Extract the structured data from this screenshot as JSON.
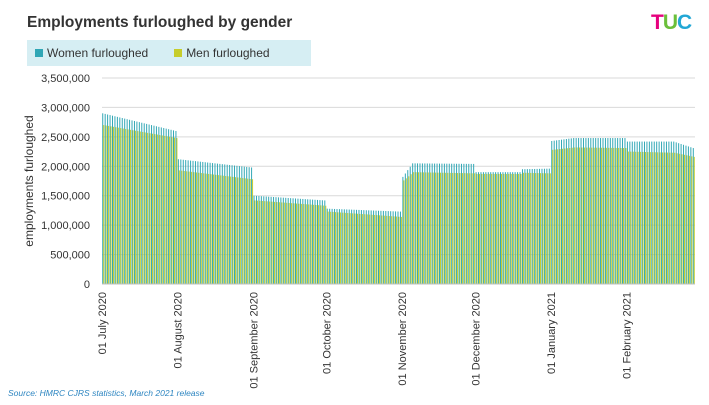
{
  "chart_data": {
    "type": "bar",
    "title": "Employments furloughed by gender",
    "xlabel": "",
    "ylabel": "employments furloughed",
    "ylim": [
      0,
      3500000
    ],
    "yticks": [
      0,
      500000,
      1000000,
      1500000,
      2000000,
      2500000,
      3000000,
      3500000
    ],
    "ytick_labels": [
      "0",
      "500,000",
      "1,000,000",
      "1,500,000",
      "2,000,000",
      "2,500,000",
      "3,000,000",
      "3,500,000"
    ],
    "grid": true,
    "legend_position": "top-left",
    "series": [
      {
        "name": "Women furloughed",
        "color": "#2fa6b5"
      },
      {
        "name": "Men furloughed",
        "color": "#c6cd2b"
      }
    ],
    "x_start": "2020-07-01",
    "x_end": "2021-02-28",
    "x_tick_labels": [
      {
        "date": "2020-07-01",
        "label": "01 July 2020"
      },
      {
        "date": "2020-08-01",
        "label": "01 August 2020"
      },
      {
        "date": "2020-09-01",
        "label": "01 September 2020"
      },
      {
        "date": "2020-10-01",
        "label": "01 October 2020"
      },
      {
        "date": "2020-11-01",
        "label": "01 November 2020"
      },
      {
        "date": "2020-12-01",
        "label": "01 December 2020"
      },
      {
        "date": "2021-01-01",
        "label": "01 January 2021"
      },
      {
        "date": "2021-02-01",
        "label": "01 February 2021"
      }
    ],
    "keypoints": [
      {
        "date": "2020-07-01",
        "women": 2900000,
        "men": 2700000
      },
      {
        "date": "2020-07-31",
        "women": 2600000,
        "men": 2480000
      },
      {
        "date": "2020-08-01",
        "women": 2120000,
        "men": 1930000
      },
      {
        "date": "2020-08-31",
        "women": 1980000,
        "men": 1780000
      },
      {
        "date": "2020-09-01",
        "women": 1500000,
        "men": 1420000
      },
      {
        "date": "2020-09-30",
        "women": 1420000,
        "men": 1330000
      },
      {
        "date": "2020-10-01",
        "women": 1280000,
        "men": 1230000
      },
      {
        "date": "2020-10-31",
        "women": 1230000,
        "men": 1140000
      },
      {
        "date": "2020-11-01",
        "women": 1820000,
        "men": 1760000
      },
      {
        "date": "2020-11-05",
        "women": 2050000,
        "men": 1900000
      },
      {
        "date": "2020-11-30",
        "women": 2040000,
        "men": 1880000
      },
      {
        "date": "2020-12-01",
        "women": 1900000,
        "men": 1870000
      },
      {
        "date": "2020-12-19",
        "women": 1900000,
        "men": 1870000
      },
      {
        "date": "2020-12-20",
        "women": 1950000,
        "men": 1890000
      },
      {
        "date": "2020-12-31",
        "women": 1960000,
        "men": 1880000
      },
      {
        "date": "2021-01-01",
        "women": 2430000,
        "men": 2280000
      },
      {
        "date": "2021-01-10",
        "women": 2480000,
        "men": 2320000
      },
      {
        "date": "2021-01-31",
        "women": 2480000,
        "men": 2310000
      },
      {
        "date": "2021-02-01",
        "women": 2420000,
        "men": 2250000
      },
      {
        "date": "2021-02-20",
        "women": 2420000,
        "men": 2230000
      },
      {
        "date": "2021-02-28",
        "women": 2310000,
        "men": 2160000
      }
    ]
  },
  "logo_text": [
    "T",
    "U",
    "C"
  ],
  "source": "Source:  HMRC  CJRS statistics, March  2021 release"
}
